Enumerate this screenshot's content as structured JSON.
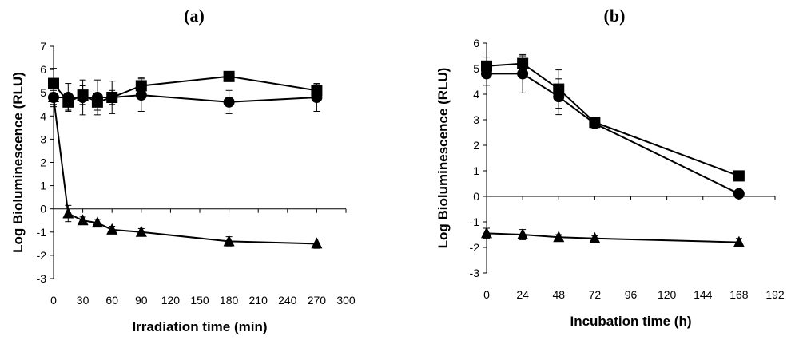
{
  "chart_data": [
    {
      "type": "line",
      "panel_label": "(a)",
      "title": "",
      "xlabel": "Irradiation time (min)",
      "ylabel": "Log Bioluminescence (RLU)",
      "xlim": [
        0,
        300
      ],
      "ylim": [
        -3,
        7
      ],
      "xticks": [
        0,
        30,
        60,
        90,
        120,
        150,
        180,
        210,
        240,
        270,
        300
      ],
      "yticks": [
        -3,
        -2,
        -1,
        0,
        1,
        2,
        3,
        4,
        5,
        6,
        7
      ],
      "grid": false,
      "legend": "none",
      "series": [
        {
          "name": "square",
          "marker": "square",
          "x": [
            0,
            15,
            30,
            45,
            60,
            90,
            180,
            270
          ],
          "y": [
            5.4,
            4.6,
            4.9,
            4.6,
            4.8,
            5.3,
            5.7,
            5.1
          ],
          "err": [
            0.65,
            0.35,
            0.4,
            0.35,
            0.3,
            0.35,
            0.15,
            0.25
          ]
        },
        {
          "name": "circle",
          "marker": "circle",
          "x": [
            0,
            15,
            30,
            45,
            60,
            90,
            180,
            270
          ],
          "y": [
            4.8,
            4.8,
            4.8,
            4.8,
            4.8,
            4.9,
            4.6,
            4.8
          ],
          "err": [
            0.4,
            0.6,
            0.75,
            0.75,
            0.7,
            0.7,
            0.5,
            0.6
          ]
        },
        {
          "name": "triangle",
          "marker": "triangle",
          "x": [
            0,
            15,
            30,
            45,
            60,
            90,
            180,
            270
          ],
          "y": [
            4.8,
            -0.2,
            -0.5,
            -0.6,
            -0.9,
            -1.0,
            -1.4,
            -1.5
          ],
          "err": [
            0.3,
            0.35,
            0.15,
            0.15,
            0.15,
            0.15,
            0.2,
            0.2
          ]
        }
      ]
    },
    {
      "type": "line",
      "panel_label": "(b)",
      "title": "",
      "xlabel": "Incubation time (h)",
      "ylabel": "Log Bioluminescence (RLU)",
      "xlim": [
        0,
        192
      ],
      "ylim": [
        -3,
        6
      ],
      "xticks": [
        0,
        24,
        48,
        72,
        96,
        120,
        144,
        168,
        192
      ],
      "yticks": [
        -3,
        -2,
        -1,
        0,
        1,
        2,
        3,
        4,
        5,
        6
      ],
      "grid": false,
      "legend": "none",
      "series": [
        {
          "name": "square",
          "marker": "square",
          "x": [
            0,
            24,
            48,
            72,
            168
          ],
          "y": [
            5.1,
            5.2,
            4.2,
            2.9,
            0.8
          ],
          "err": [
            0.35,
            0.3,
            0.75,
            0.1,
            0.1
          ]
        },
        {
          "name": "circle",
          "marker": "circle",
          "x": [
            0,
            24,
            48,
            72,
            168
          ],
          "y": [
            4.8,
            4.8,
            3.9,
            2.85,
            0.1
          ],
          "err": [
            0.45,
            0.75,
            0.7,
            0.1,
            0.1
          ]
        },
        {
          "name": "triangle",
          "marker": "triangle",
          "x": [
            0,
            24,
            48,
            72,
            168
          ],
          "y": [
            -1.45,
            -1.5,
            -1.6,
            -1.65,
            -1.8
          ],
          "err": [
            0.2,
            0.2,
            0.1,
            0.1,
            0.15
          ]
        }
      ]
    }
  ]
}
